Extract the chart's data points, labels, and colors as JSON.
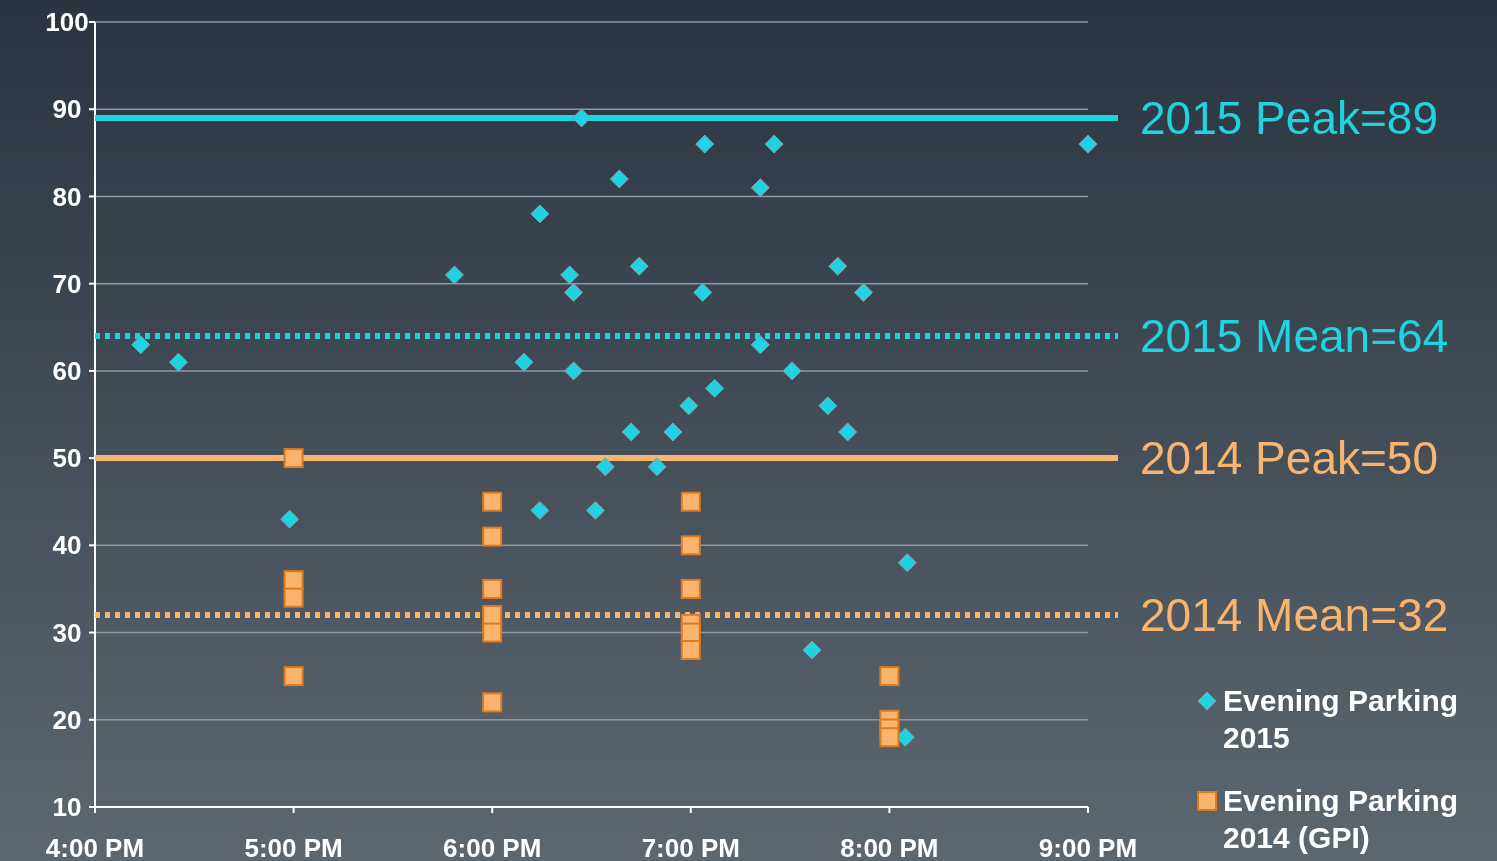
{
  "chart_data": {
    "type": "scatter",
    "xlim": [
      16,
      21
    ],
    "ylim": [
      10,
      100
    ],
    "xticks": [
      {
        "value": 16,
        "label": "4:00 PM"
      },
      {
        "value": 17,
        "label": "5:00 PM"
      },
      {
        "value": 18,
        "label": "6:00 PM"
      },
      {
        "value": 19,
        "label": "7:00 PM"
      },
      {
        "value": 20,
        "label": "8:00 PM"
      },
      {
        "value": 21,
        "label": "9:00 PM"
      }
    ],
    "yticks": [
      10,
      20,
      30,
      40,
      50,
      60,
      70,
      80,
      90,
      100
    ],
    "grid": "y",
    "legend": "bottom right",
    "series": [
      {
        "name": "Evening Parking 2015",
        "color": "#1fd3e0",
        "marker": "diamond",
        "x": [
          16.23,
          16.42,
          16.98,
          17.81,
          18.16,
          18.24,
          18.24,
          18.39,
          18.41,
          18.41,
          18.45,
          18.52,
          18.57,
          18.64,
          18.7,
          18.74,
          18.83,
          18.91,
          18.99,
          19.06,
          19.07,
          19.12,
          19.35,
          19.35,
          19.42,
          19.51,
          19.61,
          19.69,
          19.74,
          19.79,
          19.87,
          20.09,
          20.08,
          21
        ],
        "values": [
          63,
          61,
          43,
          71,
          61,
          78,
          44,
          71,
          69,
          60,
          89,
          44,
          49,
          82,
          53,
          72,
          49,
          53,
          56,
          69,
          86,
          58,
          81,
          63,
          86,
          60,
          28,
          56,
          72,
          53,
          69,
          38,
          18,
          86
        ]
      },
      {
        "name": "Evening Parking 2014 (GPI)",
        "color": "#f9b56e",
        "marker": "square",
        "x": [
          17,
          17,
          17,
          17,
          18,
          18,
          18,
          18,
          18,
          18,
          19,
          19,
          19,
          19,
          19,
          19,
          20,
          20,
          20,
          20
        ],
        "values": [
          50,
          36,
          34,
          25,
          45,
          41,
          35,
          32,
          30,
          22,
          45,
          40,
          35,
          31,
          30,
          28,
          25,
          20,
          19,
          18
        ]
      }
    ],
    "ref_lines": [
      {
        "axis": "y",
        "value": 89,
        "label": "2015 Peak=89",
        "color": "#1fd3e0",
        "line_style": "solid"
      },
      {
        "axis": "y",
        "value": 64,
        "label": "2015 Mean=64",
        "color": "#1fd3e0",
        "line_style": "dotted"
      },
      {
        "axis": "y",
        "value": 50,
        "label": "2014 Peak=50",
        "color": "#f9b56e",
        "line_style": "solid"
      },
      {
        "axis": "y",
        "value": 32,
        "label": "2014 Mean=32",
        "color": "#f9b56e",
        "line_style": "dotted"
      }
    ]
  }
}
